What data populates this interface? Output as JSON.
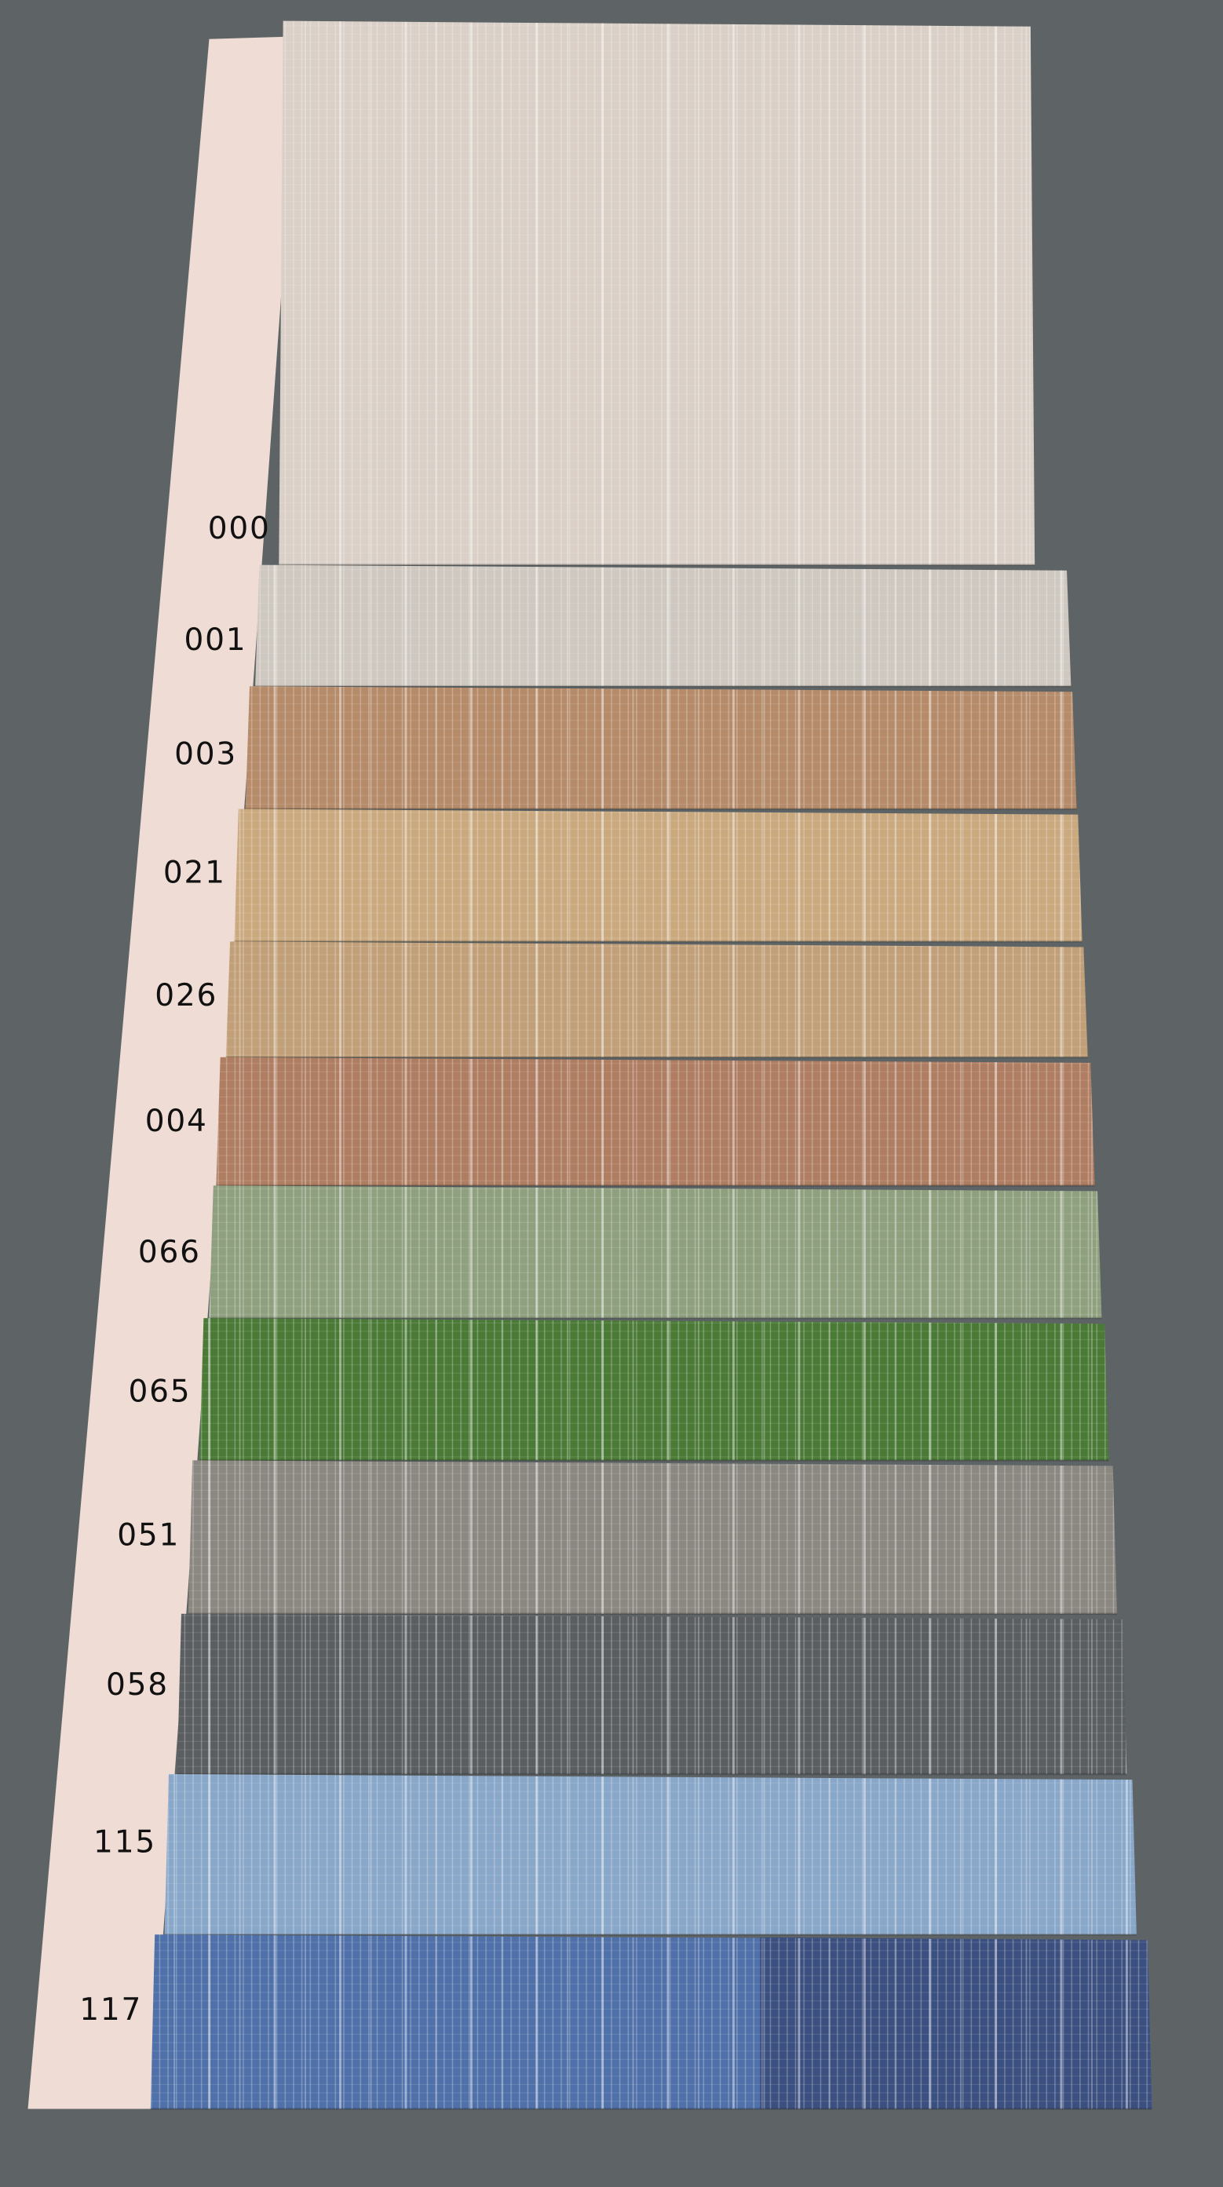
{
  "background_color": "#5e6466",
  "card_color": "#efdcd4",
  "swatches": [
    {
      "code": "000",
      "color": "#dad0c7"
    },
    {
      "code": "001",
      "color": "#cfc8c0"
    },
    {
      "code": "003",
      "color": "#b58b69"
    },
    {
      "code": "021",
      "color": "#caa97f"
    },
    {
      "code": "026",
      "color": "#c1a079"
    },
    {
      "code": "004",
      "color": "#af7e62"
    },
    {
      "code": "066",
      "color": "#8fa07f"
    },
    {
      "code": "065",
      "color": "#4b7a37"
    },
    {
      "code": "051",
      "color": "#8b8781"
    },
    {
      "code": "058",
      "color": "#5a5e61"
    },
    {
      "code": "115",
      "color": "#89a7c9"
    },
    {
      "code": "117",
      "color": "#4f70a9",
      "secondary_color": "#3b5080"
    }
  ]
}
